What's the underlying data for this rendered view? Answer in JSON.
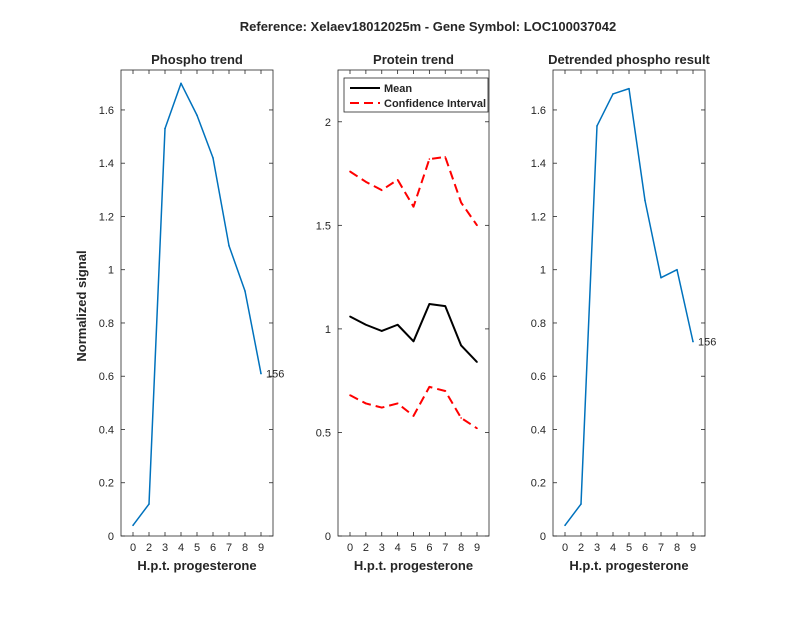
{
  "figure": {
    "title": "Reference:  Xelaev18012025m - Gene Symbol:  LOC100037042"
  },
  "colors": {
    "phospho_line": "#0072BD",
    "mean_line": "#000000",
    "ci_line": "#FF0000",
    "axis": "#262626"
  },
  "chart_data": [
    {
      "type": "line",
      "title": "Phospho trend",
      "xlabel": "H.p.t. progesterone",
      "ylabel": "Normalized signal",
      "categories": [
        "0",
        "2",
        "3",
        "4",
        "5",
        "6",
        "7",
        "8",
        "9"
      ],
      "ylim": [
        0,
        1.75
      ],
      "yticks": [
        0,
        0.2,
        0.4,
        0.6,
        0.8,
        1,
        1.2,
        1.4,
        1.6
      ],
      "series": [
        {
          "name": "Phospho",
          "values": [
            0.04,
            0.12,
            1.53,
            1.7,
            1.58,
            1.42,
            1.09,
            0.92,
            0.61
          ]
        }
      ],
      "annotation": "156"
    },
    {
      "type": "line",
      "title": "Protein trend",
      "xlabel": "H.p.t. progesterone",
      "ylabel": "",
      "categories": [
        "0",
        "2",
        "3",
        "4",
        "5",
        "6",
        "7",
        "8",
        "9"
      ],
      "ylim": [
        0,
        2.25
      ],
      "yticks": [
        0,
        0.5,
        1,
        1.5,
        2
      ],
      "series": [
        {
          "name": "Mean",
          "values": [
            1.06,
            1.02,
            0.99,
            1.02,
            0.94,
            1.12,
            1.11,
            0.92,
            0.84
          ]
        },
        {
          "name": "Confidence Interval",
          "values": [
            1.76,
            1.71,
            1.67,
            1.72,
            1.59,
            1.82,
            1.83,
            1.61,
            1.5
          ]
        },
        {
          "name": "Confidence Interval lower",
          "values": [
            0.68,
            0.64,
            0.62,
            0.64,
            0.58,
            0.72,
            0.7,
            0.57,
            0.52
          ]
        }
      ],
      "legend": {
        "placement": "top-left",
        "entries": [
          "Mean",
          "Confidence Interval"
        ]
      }
    },
    {
      "type": "line",
      "title": "Detrended phospho result",
      "xlabel": "H.p.t. progesterone",
      "ylabel": "",
      "categories": [
        "0",
        "2",
        "3",
        "4",
        "5",
        "6",
        "7",
        "8",
        "9"
      ],
      "ylim": [
        0,
        1.75
      ],
      "yticks": [
        0,
        0.2,
        0.4,
        0.6,
        0.8,
        1,
        1.2,
        1.4,
        1.6
      ],
      "series": [
        {
          "name": "Detrended",
          "values": [
            0.04,
            0.12,
            1.54,
            1.66,
            1.68,
            1.26,
            0.97,
            1.0,
            0.73
          ]
        }
      ],
      "annotation": "156"
    }
  ]
}
